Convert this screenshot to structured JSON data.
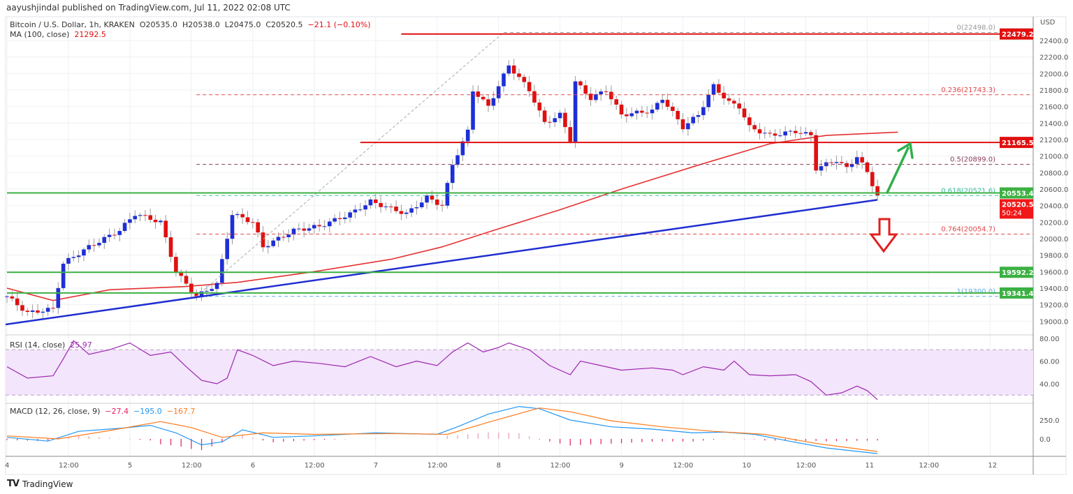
{
  "publisher_line": "aayushjindal published on TradingView.com, Jul 11, 2022 02:08 UTC",
  "brand": "TradingView",
  "colors": {
    "up": "#1e2fd6",
    "down": "#e01010",
    "ma": "#e53030",
    "trend": "#1f2fd0",
    "support": "#3cb043",
    "resistance": "#e01010",
    "rsi": "#9c27b0",
    "macd": "#2196f3",
    "signal": "#ff7a1a"
  },
  "chart_data": {
    "type": "candlestick",
    "title": "Bitcoin / U.S. Dollar, 1h, KRAKEN",
    "ohlc_label": {
      "o": "O20535.0",
      "h": "H20538.0",
      "l": "L20475.0",
      "c": "C20520.5",
      "chg": "−21.1 (−0.10%)"
    },
    "ma_label": "MA (100, close)",
    "ma_value": "21292.5",
    "currency": "USD",
    "ylim": [
      18850,
      22600
    ],
    "y_ticks": [
      "22400.0",
      "22200.0",
      "22000.0",
      "21800.0",
      "21600.0",
      "21400.0",
      "21200.0",
      "21000.0",
      "20800.0",
      "20600.0",
      "20400.0",
      "20200.0",
      "20000.0",
      "19800.0",
      "19600.0",
      "19400.0",
      "19200.0",
      "19000.0"
    ],
    "y_tick_values": [
      22400,
      22200,
      22000,
      21800,
      21600,
      21400,
      21200,
      21000,
      20800,
      20600,
      20400,
      20200,
      20000,
      19800,
      19600,
      19400,
      19200,
      19000
    ],
    "x_ticks": [
      "4",
      "12:00",
      "5",
      "12:00",
      "6",
      "12:00",
      "7",
      "12:00",
      "8",
      "12:00",
      "9",
      "12:00",
      "10",
      "12:00",
      "11",
      "12:00",
      "12"
    ],
    "x_tick_hours": [
      0,
      12,
      24,
      36,
      48,
      60,
      72,
      84,
      96,
      108,
      120,
      132,
      144,
      156,
      168,
      180,
      192
    ],
    "price_path_hour_price": [
      [
        0,
        19300
      ],
      [
        4,
        19100
      ],
      [
        9,
        19150
      ],
      [
        11,
        19700
      ],
      [
        16,
        19900
      ],
      [
        22,
        20100
      ],
      [
        25,
        20300
      ],
      [
        30,
        20200
      ],
      [
        33,
        19600
      ],
      [
        37,
        19300
      ],
      [
        41,
        19450
      ],
      [
        44,
        20300
      ],
      [
        48,
        20200
      ],
      [
        50,
        19900
      ],
      [
        56,
        20100
      ],
      [
        61,
        20150
      ],
      [
        67,
        20300
      ],
      [
        71,
        20450
      ],
      [
        78,
        20300
      ],
      [
        82,
        20500
      ],
      [
        85,
        20400
      ],
      [
        87,
        20900
      ],
      [
        90,
        21300
      ],
      [
        91,
        21800
      ],
      [
        94,
        21600
      ],
      [
        98,
        22100
      ],
      [
        100,
        21950
      ],
      [
        102,
        21800
      ],
      [
        105,
        21400
      ],
      [
        108,
        21500
      ],
      [
        110,
        21200
      ],
      [
        111,
        21900
      ],
      [
        114,
        21700
      ],
      [
        117,
        21800
      ],
      [
        120,
        21500
      ],
      [
        126,
        21550
      ],
      [
        128,
        21700
      ],
      [
        132,
        21350
      ],
      [
        135,
        21500
      ],
      [
        138,
        21850
      ],
      [
        141,
        21650
      ],
      [
        143,
        21600
      ],
      [
        145,
        21350
      ],
      [
        149,
        21250
      ],
      [
        154,
        21300
      ],
      [
        157,
        21250
      ],
      [
        158,
        20850
      ],
      [
        162,
        20950
      ],
      [
        164,
        20850
      ],
      [
        166,
        21000
      ],
      [
        168,
        20800
      ],
      [
        170,
        20520
      ]
    ],
    "ma100_hour_price": [
      [
        0,
        19400
      ],
      [
        9,
        19250
      ],
      [
        20,
        19380
      ],
      [
        35,
        19420
      ],
      [
        45,
        19470
      ],
      [
        60,
        19600
      ],
      [
        75,
        19750
      ],
      [
        85,
        19900
      ],
      [
        95,
        20100
      ],
      [
        108,
        20350
      ],
      [
        120,
        20600
      ],
      [
        135,
        20890
      ],
      [
        149,
        21150
      ],
      [
        160,
        21250
      ],
      [
        174,
        21290
      ]
    ],
    "levels": [
      {
        "name": "resistance-22479",
        "price": 22479.2,
        "label": "22479.2",
        "kind": "resistance",
        "from_hour": 77
      },
      {
        "name": "resistance-21165",
        "price": 21165.5,
        "label": "21165.5",
        "kind": "resistance",
        "from_hour": 69
      },
      {
        "name": "support-20553",
        "price": 20553.4,
        "label": "20553.4",
        "kind": "support",
        "from_hour": 0
      },
      {
        "name": "support-19592",
        "price": 19592.2,
        "label": "19592.2",
        "kind": "support",
        "from_hour": 0
      },
      {
        "name": "support-19341",
        "price": 19341.4,
        "label": "19341.4",
        "kind": "support",
        "from_hour": 0
      }
    ],
    "last_price": {
      "label": "20520.5",
      "countdown": "50:24",
      "price": 20520.5
    },
    "fib": [
      {
        "label": "0(22498.0)",
        "price": 22498.0,
        "color": "#999999",
        "from_hour": 97
      },
      {
        "label": "0.236(21743.3)",
        "price": 21743.3,
        "color": "#e04848",
        "from_hour": 37
      },
      {
        "label": "0.5(20899.0)",
        "price": 20899.0,
        "color": "#8a3a5a",
        "from_hour": 37
      },
      {
        "label": "0.618(20521.6)",
        "price": 20521.6,
        "color": "#3cc0a0",
        "from_hour": 37
      },
      {
        "label": "0.764(20054.7)",
        "price": 20054.7,
        "color": "#e04848",
        "from_hour": 37
      },
      {
        "label": "1(19300.0)",
        "price": 19300.0,
        "color": "#5aaee0",
        "from_hour": 37
      }
    ],
    "trendline": [
      [
        -1,
        18960
      ],
      [
        170,
        20470
      ]
    ],
    "rsi": {
      "label": "RSI (14, close)",
      "value": "25.97",
      "ticks": [
        "80.00",
        "60.00",
        "40.00"
      ],
      "tick_values": [
        80,
        60,
        40
      ],
      "band": [
        30,
        70
      ],
      "path": [
        [
          0,
          55
        ],
        [
          4,
          45
        ],
        [
          9,
          47
        ],
        [
          11,
          62
        ],
        [
          13,
          78
        ],
        [
          16,
          66
        ],
        [
          20,
          70
        ],
        [
          24,
          76
        ],
        [
          28,
          65
        ],
        [
          32,
          68
        ],
        [
          35,
          55
        ],
        [
          38,
          43
        ],
        [
          41,
          40
        ],
        [
          43,
          45
        ],
        [
          45,
          70
        ],
        [
          48,
          65
        ],
        [
          52,
          56
        ],
        [
          56,
          60
        ],
        [
          61,
          58
        ],
        [
          66,
          55
        ],
        [
          71,
          64
        ],
        [
          76,
          55
        ],
        [
          80,
          60
        ],
        [
          84,
          56
        ],
        [
          87,
          68
        ],
        [
          90,
          76
        ],
        [
          93,
          68
        ],
        [
          96,
          72
        ],
        [
          98,
          76
        ],
        [
          102,
          70
        ],
        [
          106,
          56
        ],
        [
          110,
          48
        ],
        [
          112,
          60
        ],
        [
          116,
          56
        ],
        [
          120,
          52
        ],
        [
          126,
          54
        ],
        [
          130,
          52
        ],
        [
          132,
          48
        ],
        [
          136,
          55
        ],
        [
          140,
          52
        ],
        [
          142,
          60
        ],
        [
          145,
          48
        ],
        [
          149,
          47
        ],
        [
          154,
          48
        ],
        [
          157,
          42
        ],
        [
          160,
          30
        ],
        [
          163,
          32
        ],
        [
          166,
          38
        ],
        [
          168,
          34
        ],
        [
          170,
          26
        ]
      ]
    },
    "macd": {
      "label": "MACD (12, 26, close, 9)",
      "hist_value": "−27.4",
      "macd_value": "−195.0",
      "signal_value": "−167.7",
      "ticks": [
        "250.0",
        "0.0"
      ],
      "tick_values": [
        250,
        0
      ],
      "macd_path": [
        [
          0,
          20
        ],
        [
          8,
          -30
        ],
        [
          14,
          100
        ],
        [
          22,
          140
        ],
        [
          28,
          180
        ],
        [
          33,
          80
        ],
        [
          38,
          -80
        ],
        [
          42,
          -40
        ],
        [
          46,
          120
        ],
        [
          52,
          20
        ],
        [
          60,
          40
        ],
        [
          72,
          80
        ],
        [
          84,
          60
        ],
        [
          88,
          160
        ],
        [
          94,
          330
        ],
        [
          100,
          430
        ],
        [
          104,
          400
        ],
        [
          110,
          250
        ],
        [
          118,
          160
        ],
        [
          126,
          130
        ],
        [
          134,
          80
        ],
        [
          140,
          90
        ],
        [
          146,
          60
        ],
        [
          152,
          -20
        ],
        [
          160,
          -120
        ],
        [
          170,
          -195
        ]
      ],
      "signal_path": [
        [
          0,
          40
        ],
        [
          10,
          0
        ],
        [
          20,
          110
        ],
        [
          30,
          230
        ],
        [
          36,
          150
        ],
        [
          42,
          20
        ],
        [
          50,
          80
        ],
        [
          60,
          60
        ],
        [
          75,
          70
        ],
        [
          86,
          60
        ],
        [
          94,
          220
        ],
        [
          104,
          410
        ],
        [
          110,
          360
        ],
        [
          118,
          240
        ],
        [
          128,
          160
        ],
        [
          138,
          100
        ],
        [
          148,
          60
        ],
        [
          158,
          -60
        ],
        [
          170,
          -168
        ]
      ]
    }
  }
}
